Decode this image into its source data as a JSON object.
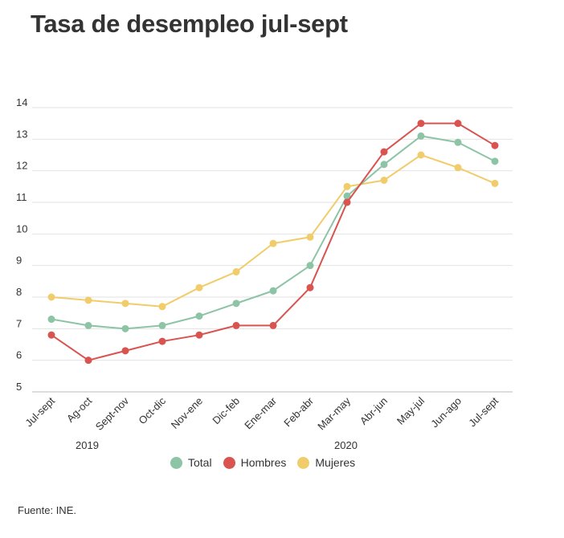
{
  "title": "Tasa de desempleo jul-sept",
  "source": "Fuente: INE.",
  "chart_data": {
    "type": "line",
    "title": "Tasa de desempleo jul-sept",
    "xlabel": "",
    "ylabel": "",
    "categories": [
      "Jul-sept",
      "Ag-oct",
      "Sept-nov",
      "Oct-dic",
      "Nov-ene",
      "Dic-feb",
      "Ene-mar",
      "Feb-abr",
      "Mar-may",
      "Abr-jun",
      "May-jul",
      "Jun-ago",
      "Jul-sept"
    ],
    "year_labels": [
      "2019",
      "2020"
    ],
    "ylim": [
      5,
      14
    ],
    "yticks": [
      5,
      6,
      7,
      8,
      9,
      10,
      11,
      12,
      13,
      14
    ],
    "grid": true,
    "legend_position": "bottom",
    "series": [
      {
        "name": "Total",
        "color": "#8dc4a6",
        "values": [
          7.3,
          7.1,
          7.0,
          7.1,
          7.4,
          7.8,
          8.2,
          9.0,
          11.2,
          12.2,
          13.1,
          12.9,
          12.3
        ]
      },
      {
        "name": "Hombres",
        "color": "#d9534f",
        "values": [
          6.8,
          6.0,
          6.3,
          6.6,
          6.8,
          7.1,
          7.1,
          8.3,
          11.0,
          12.6,
          13.5,
          13.5,
          12.8
        ]
      },
      {
        "name": "Mujeres",
        "color": "#f0cc6a",
        "values": [
          8.0,
          7.9,
          7.8,
          7.7,
          8.3,
          8.8,
          9.7,
          9.9,
          11.5,
          11.7,
          12.5,
          12.1,
          11.6
        ]
      }
    ]
  }
}
